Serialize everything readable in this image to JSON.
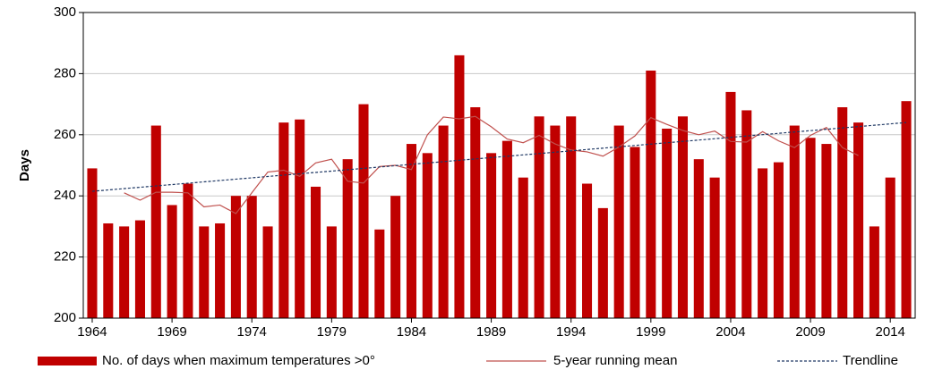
{
  "chart_data": {
    "type": "bar",
    "y_label": "Days",
    "x": [
      1964,
      1965,
      1966,
      1967,
      1968,
      1969,
      1970,
      1971,
      1972,
      1973,
      1974,
      1975,
      1976,
      1977,
      1978,
      1979,
      1980,
      1981,
      1982,
      1983,
      1984,
      1985,
      1986,
      1987,
      1988,
      1989,
      1990,
      1991,
      1992,
      1993,
      1994,
      1995,
      1996,
      1997,
      1998,
      1999,
      2000,
      2001,
      2002,
      2003,
      2004,
      2005,
      2006,
      2007,
      2008,
      2009,
      2010,
      2011,
      2012,
      2013,
      2014,
      2015
    ],
    "series": [
      {
        "name": "No. of days when maximum temperatures >0°",
        "color": "#c00000",
        "kind": "bar",
        "values": [
          249,
          231,
          230,
          232,
          263,
          237,
          244,
          230,
          231,
          240,
          240,
          230,
          264,
          265,
          243,
          230,
          252,
          270,
          229,
          240,
          257,
          254,
          263,
          286,
          269,
          254,
          258,
          246,
          266,
          263,
          266,
          244,
          236,
          263,
          256,
          281,
          262,
          266,
          252,
          246,
          274,
          268,
          249,
          251,
          263,
          259,
          257,
          269,
          264,
          230,
          246,
          271
        ]
      },
      {
        "name": "5-year running mean",
        "color": "#c0504d",
        "kind": "line",
        "values": [
          null,
          null,
          241,
          238.6,
          241.2,
          241.2,
          241,
          236.4,
          237,
          234.2,
          241,
          247.8,
          248.4,
          246.4,
          250.8,
          252,
          244.8,
          244.2,
          249.6,
          250,
          248.6,
          260,
          265.8,
          265.2,
          266,
          262.6,
          258.6,
          257.4,
          259.8,
          257,
          255,
          254.4,
          253,
          256,
          259.6,
          265.6,
          263.4,
          261.4,
          260,
          261.2,
          257.8,
          257.6,
          261,
          258,
          255.8,
          259.8,
          262.4,
          255.8,
          253.2,
          null,
          null,
          null
        ]
      }
    ],
    "trendline": {
      "name": "Trendline",
      "color": "#1f3864",
      "x": [
        1964,
        2015
      ],
      "values": [
        241.5,
        264
      ]
    },
    "xlim": [
      1963.44,
      2015.56
    ],
    "xticks": [
      1964,
      1969,
      1974,
      1979,
      1984,
      1989,
      1994,
      1999,
      2004,
      2009,
      2014
    ],
    "ylim": [
      200,
      300
    ],
    "yticks": [
      200,
      220,
      240,
      260,
      280,
      300
    ],
    "grid": true,
    "legend": "bottom"
  }
}
